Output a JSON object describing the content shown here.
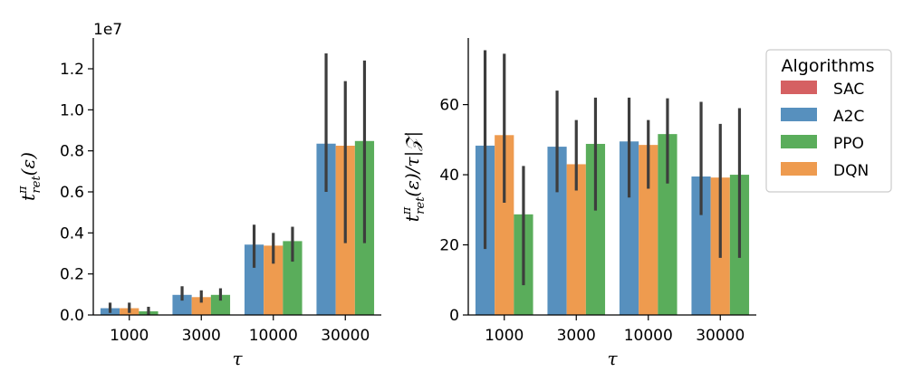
{
  "chart_data": [
    {
      "type": "bar",
      "categories": [
        "1000",
        "3000",
        "10000",
        "30000"
      ],
      "xlabel": "τ",
      "ylabel": "t_ret^π(ε)",
      "ylabel_display": {
        "main": "t",
        "sup": "π",
        "sub": "ret",
        "tail": "(ε)"
      },
      "scale_label": "1e7",
      "ylim": [
        0,
        1.35
      ],
      "yticks": [
        "0.0",
        "0.2",
        "0.4",
        "0.6",
        "0.8",
        "1.0",
        "1.2"
      ],
      "series": [
        {
          "name": "A2C",
          "color": "#5790be",
          "values": [
            0.033,
            0.098,
            0.343,
            0.835
          ],
          "ci": [
            [
              0.01,
              0.06
            ],
            [
              0.07,
              0.14
            ],
            [
              0.23,
              0.44
            ],
            [
              0.6,
              1.275
            ]
          ]
        },
        {
          "name": "DQN",
          "color": "#ee9b4f",
          "values": [
            0.033,
            0.087,
            0.338,
            0.825
          ],
          "ci": [
            [
              0.01,
              0.06
            ],
            [
              0.06,
              0.12
            ],
            [
              0.25,
              0.4
            ],
            [
              0.35,
              1.14
            ]
          ]
        },
        {
          "name": "PPO",
          "color": "#5aad5b",
          "values": [
            0.018,
            0.098,
            0.36,
            0.848
          ],
          "ci": [
            [
              0.0,
              0.04
            ],
            [
              0.07,
              0.13
            ],
            [
              0.26,
              0.43
            ],
            [
              0.35,
              1.24
            ]
          ]
        }
      ]
    },
    {
      "type": "bar",
      "categories": [
        "1000",
        "3000",
        "10000",
        "30000"
      ],
      "xlabel": "τ",
      "ylabel": "t_ret^π(ε)/τ|Z|",
      "ylabel_display": {
        "main": "t",
        "sup": "π",
        "sub": "ret",
        "tail": "(ε)/τ|𝒵|"
      },
      "ylim": [
        0,
        79
      ],
      "yticks": [
        "0",
        "20",
        "40",
        "60"
      ],
      "series": [
        {
          "name": "A2C",
          "color": "#5790be",
          "values": [
            48.3,
            48.0,
            49.5,
            39.5
          ],
          "ci": [
            [
              18.8,
              75.5
            ],
            [
              35.0,
              64.0
            ],
            [
              33.5,
              62.0
            ],
            [
              28.5,
              60.8
            ]
          ]
        },
        {
          "name": "DQN",
          "color": "#ee9b4f",
          "values": [
            51.3,
            43.0,
            48.5,
            39.2
          ],
          "ci": [
            [
              32.0,
              74.5
            ],
            [
              35.5,
              55.6
            ],
            [
              36.0,
              55.6
            ],
            [
              16.3,
              54.5
            ]
          ]
        },
        {
          "name": "PPO",
          "color": "#5aad5b",
          "values": [
            28.7,
            48.8,
            51.6,
            40.0
          ],
          "ci": [
            [
              8.5,
              42.5
            ],
            [
              29.8,
              62.0
            ],
            [
              37.5,
              61.8
            ],
            [
              16.3,
              59.0
            ]
          ]
        }
      ]
    }
  ],
  "legend": {
    "title": "Algorithms",
    "placement": "right",
    "items": [
      {
        "name": "SAC",
        "color": "#d56062"
      },
      {
        "name": "A2C",
        "color": "#5790be"
      },
      {
        "name": "PPO",
        "color": "#5aad5b"
      },
      {
        "name": "DQN",
        "color": "#ee9b4f"
      }
    ]
  },
  "errorbar_color": "#3d3d3d"
}
